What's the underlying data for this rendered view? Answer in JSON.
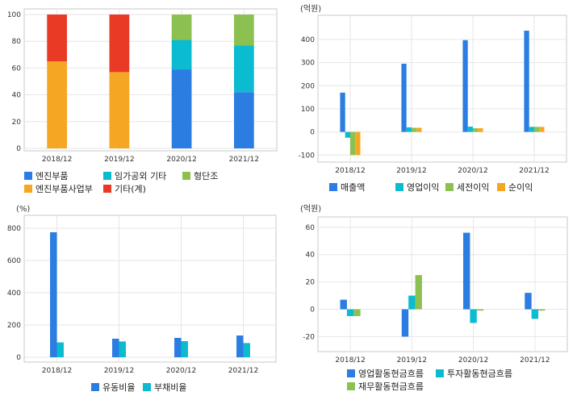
{
  "colors": {
    "blue": "#2b7de1",
    "cyan": "#0bbcd0",
    "green": "#8cc152",
    "orange": "#f5a623",
    "red": "#e83a25",
    "grid": "#e6e6e6",
    "frame": "#c8c8c8"
  },
  "chart_data": [
    {
      "type": "bar",
      "stacked": true,
      "unit": "",
      "categories": [
        "2018/12",
        "2019/12",
        "2020/12",
        "2021/12"
      ],
      "ylim": [
        0,
        100
      ],
      "yticks": [
        0,
        20,
        40,
        60,
        80,
        100
      ],
      "grid": true,
      "legend_position": "bottom",
      "series": [
        {
          "name": "엔진부품",
          "color": "#2b7de1",
          "values": [
            0,
            0,
            59,
            42
          ]
        },
        {
          "name": "엔진부품사업부",
          "color": "#f5a623",
          "values": [
            65,
            57,
            0,
            0
          ]
        },
        {
          "name": "임가공외 기타",
          "color": "#0bbcd0",
          "values": [
            0,
            0,
            22,
            35
          ]
        },
        {
          "name": "기타(계)",
          "color": "#e83a25",
          "values": [
            35,
            43,
            0,
            0
          ]
        },
        {
          "name": "형단조",
          "color": "#8cc152",
          "values": [
            0,
            0,
            19,
            23
          ]
        }
      ]
    },
    {
      "type": "bar",
      "unit": "(억원)",
      "categories": [
        "2018/12",
        "2019/12",
        "2020/12",
        "2021/12"
      ],
      "ylim": [
        -120,
        480
      ],
      "yticks": [
        -100,
        0,
        100,
        200,
        300,
        400
      ],
      "grid": true,
      "legend_position": "bottom",
      "series": [
        {
          "name": "매출액",
          "color": "#2b7de1",
          "values": [
            170,
            295,
            397,
            438
          ]
        },
        {
          "name": "영업이익",
          "color": "#0bbcd0",
          "values": [
            -25,
            20,
            23,
            22
          ]
        },
        {
          "name": "세전이익",
          "color": "#8cc152",
          "values": [
            -100,
            18,
            16,
            22
          ]
        },
        {
          "name": "순이익",
          "color": "#f5a623",
          "values": [
            -100,
            18,
            16,
            22
          ]
        }
      ]
    },
    {
      "type": "bar",
      "unit": "(%)",
      "categories": [
        "2018/12",
        "2019/12",
        "2020/12",
        "2021/12"
      ],
      "ylim": [
        0,
        850
      ],
      "yticks": [
        0,
        200,
        400,
        600,
        800
      ],
      "grid": true,
      "legend_position": "bottom",
      "series": [
        {
          "name": "유동비율",
          "color": "#2b7de1",
          "values": [
            775,
            115,
            120,
            135
          ]
        },
        {
          "name": "부채비율",
          "color": "#0bbcd0",
          "values": [
            92,
            98,
            100,
            88
          ]
        }
      ]
    },
    {
      "type": "bar",
      "unit": "(억원)",
      "categories": [
        "2018/12",
        "2019/12",
        "2020/12",
        "2021/12"
      ],
      "ylim": [
        -28,
        64
      ],
      "yticks": [
        -20,
        0,
        20,
        40,
        60
      ],
      "grid": true,
      "legend_position": "bottom",
      "series": [
        {
          "name": "영업활동현금흐름",
          "color": "#2b7de1",
          "values": [
            7,
            -20,
            56,
            12
          ]
        },
        {
          "name": "투자활동현금흐름",
          "color": "#0bbcd0",
          "values": [
            -5,
            10,
            -10,
            -7
          ]
        },
        {
          "name": "재무활동현금흐름",
          "color": "#8cc152",
          "values": [
            -5,
            25,
            -1,
            -1
          ]
        }
      ]
    }
  ]
}
